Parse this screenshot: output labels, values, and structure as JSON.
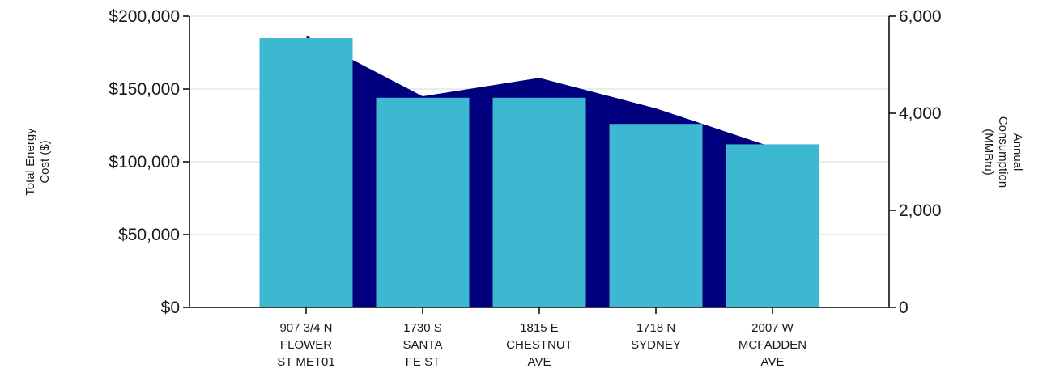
{
  "chart_data": {
    "type": "bar",
    "categories": [
      [
        "907 3/4 N",
        "FLOWER",
        "ST MET01"
      ],
      [
        "1730 S",
        "SANTA",
        "FE ST"
      ],
      [
        "1815 E",
        "CHESTNUT",
        "AVE"
      ],
      [
        "1718 N",
        "SYDNEY"
      ],
      [
        "2007 W",
        "MCFADDEN",
        "AVE"
      ]
    ],
    "series": [
      {
        "name": "",
        "type": "bar",
        "axis": "left",
        "color": "#3db8d1",
        "values": [
          185000,
          144000,
          144000,
          126000,
          112000
        ]
      },
      {
        "name": "",
        "type": "area",
        "axis": "right",
        "color": "#00007f",
        "values": [
          5600,
          4350,
          4730,
          4100,
          3300
        ]
      }
    ],
    "left_axis": {
      "label_lines": [
        "Total Energy",
        "Cost ($)"
      ],
      "ylim": [
        0,
        200000
      ],
      "ticks": [
        0,
        50000,
        100000,
        150000,
        200000
      ],
      "tick_labels": [
        "$0",
        "$50,000",
        "$100,000",
        "$150,000",
        "$200,000"
      ]
    },
    "right_axis": {
      "label_lines": [
        "Annual",
        "Consumption",
        "(MMBtu)"
      ],
      "ylim": [
        0,
        6000
      ],
      "ticks": [
        0,
        2000,
        4000,
        6000
      ],
      "tick_labels": [
        "0",
        "2,000",
        "4,000",
        "6,000"
      ]
    },
    "grid": true,
    "legend": "none"
  }
}
